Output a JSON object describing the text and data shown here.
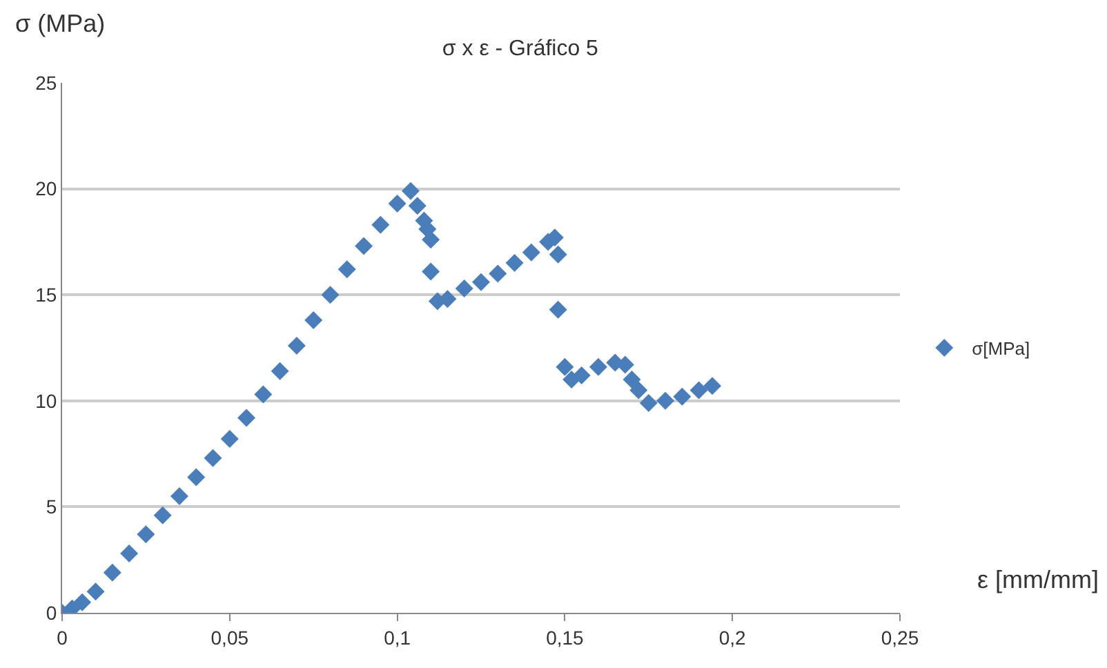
{
  "chart_data": {
    "type": "scatter",
    "title": "σ x ε - Gráfico 5",
    "xlabel": "ε [mm/mm]",
    "ylabel": "σ (MPa)",
    "x": [
      0,
      0.003,
      0.006,
      0.01,
      0.015,
      0.02,
      0.025,
      0.03,
      0.035,
      0.04,
      0.045,
      0.05,
      0.055,
      0.06,
      0.065,
      0.07,
      0.075,
      0.08,
      0.085,
      0.09,
      0.095,
      0.1,
      0.104,
      0.106,
      0.108,
      0.109,
      0.11,
      0.11,
      0.112,
      0.115,
      0.12,
      0.125,
      0.13,
      0.135,
      0.14,
      0.145,
      0.147,
      0.148,
      0.148,
      0.15,
      0.152,
      0.155,
      0.16,
      0.165,
      0.168,
      0.17,
      0.172,
      0.175,
      0.18,
      0.185,
      0.19,
      0.194
    ],
    "series": [
      {
        "name": "σ[MPa]",
        "color": "#4a7ebb",
        "values": [
          0,
          0.2,
          0.5,
          1,
          1.9,
          2.8,
          3.7,
          4.6,
          5.5,
          6.4,
          7.3,
          8.2,
          9.2,
          10.3,
          11.4,
          12.6,
          13.8,
          15,
          16.2,
          17.3,
          18.3,
          19.3,
          19.9,
          19.2,
          18.5,
          18.1,
          17.6,
          16.1,
          14.7,
          14.8,
          15.3,
          15.6,
          16,
          16.5,
          17,
          17.5,
          17.7,
          16.9,
          14.3,
          11.6,
          11,
          11.2,
          11.6,
          11.8,
          11.7,
          11,
          10.5,
          9.9,
          10,
          10.2,
          10.5,
          10.7
        ]
      }
    ],
    "xlim": [
      0,
      0.25
    ],
    "ylim": [
      0,
      25
    ],
    "xticks": [
      0,
      {
        "value": 0.05,
        "label": "0,05"
      },
      {
        "value": 0.1,
        "label": "0,1"
      },
      {
        "value": 0.15,
        "label": "0,15"
      },
      {
        "value": 0.2,
        "label": "0,2"
      },
      {
        "value": 0.25,
        "label": "0,25"
      }
    ],
    "yticks": [
      0,
      5,
      10,
      15,
      20,
      25
    ],
    "grid": "y",
    "legend": "right",
    "marker": "diamond"
  }
}
